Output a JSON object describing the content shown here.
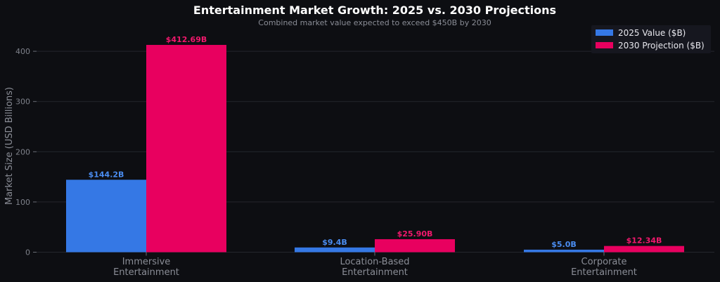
{
  "chart_data": {
    "type": "bar",
    "title": "Entertainment Market Growth: 2025 vs. 2030 Projections",
    "subtitle": "Combined market value expected to exceed $450B by 2030",
    "ylabel": "Market Size (USD Billions)",
    "xlabel": "",
    "ylim": [
      0,
      440
    ],
    "yticks": [
      0,
      100,
      200,
      300,
      400
    ],
    "categories": [
      [
        "Immersive",
        "Entertainment"
      ],
      [
        "Location-Based",
        "Entertainment"
      ],
      [
        "Corporate",
        "Entertainment"
      ]
    ],
    "series": [
      {
        "name": "2025 Value ($B)",
        "color": "#3578e5",
        "values": [
          144.2,
          9.4,
          5.0
        ],
        "labels": [
          "$144.2B",
          "$9.4B",
          "$5.0B"
        ]
      },
      {
        "name": "2030 Projection ($B)",
        "color": "#e8005f",
        "values": [
          412.69,
          25.9,
          12.34
        ],
        "labels": [
          "$412.69B",
          "$25.90B",
          "$12.34B"
        ]
      }
    ],
    "grid": true,
    "legend_position": "top-right",
    "colors": {
      "background": "#0d0e12",
      "grid": "#24262d",
      "label_2025": "#4a8cf0",
      "label_2030": "#f0186c"
    }
  }
}
